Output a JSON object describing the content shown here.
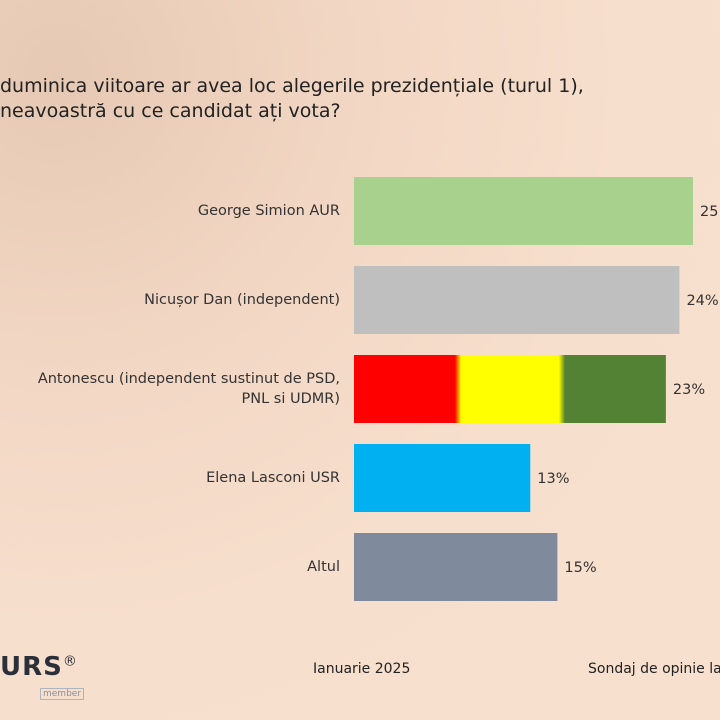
{
  "chart_data": {
    "type": "hbar",
    "title": "duminica viitoare ar avea loc alegerile prezidențiale (turul 1),\nneavoastră cu ce candidat ați vota?",
    "categories": [
      "George Simion AUR",
      "Nicușor Dan (independent)",
      "Antonescu (independent sustinut de PSD,\nPNL si UDMR)",
      "Elena Lasconi USR",
      "Altul"
    ],
    "values": [
      25,
      24,
      23,
      13,
      15
    ],
    "value_labels": [
      "25",
      "24%",
      "23%",
      "13%",
      "15%"
    ],
    "colors": [
      "#a9d18e",
      "#bfbfbf",
      [
        "#ff0000",
        "#ffff00",
        "#548235"
      ],
      "#00b0f0",
      "#7f8a9c"
    ]
  },
  "footer": {
    "logo": "URS",
    "logo_mark": "®",
    "member": "member",
    "date": "Ianuarie 2025",
    "source": "Sondaj de opinie la"
  }
}
